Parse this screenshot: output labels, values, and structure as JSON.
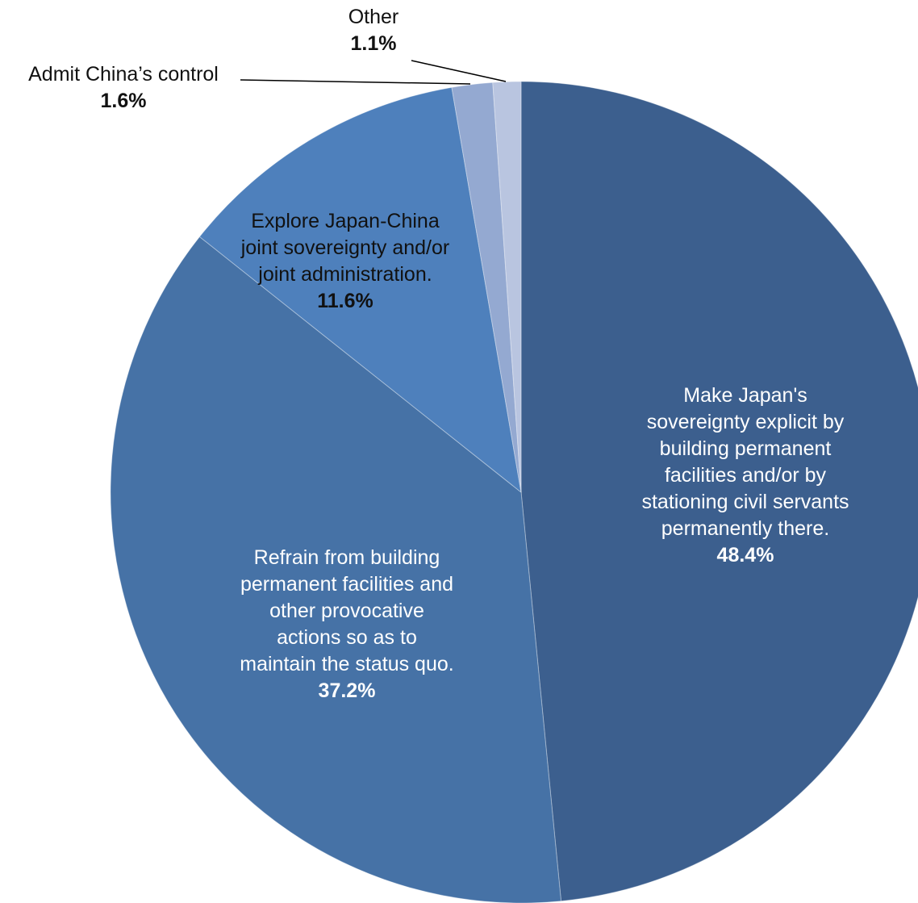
{
  "chart_data": {
    "type": "pie",
    "title": "",
    "slices": [
      {
        "label_lines": [
          "Make Japan's",
          "sovereignty explicit by",
          "building permanent",
          "facilities and/or by",
          "stationing civil servants",
          "permanently there."
        ],
        "value": 48.4,
        "value_label": "48.4%",
        "color": "#3c5f8e",
        "text_color": "#ffffff"
      },
      {
        "label_lines": [
          "Refrain from building",
          "permanent facilities and",
          "other provocative",
          "actions so as to",
          "maintain the status quo."
        ],
        "value": 37.2,
        "value_label": "37.2%",
        "color": "#4672a6",
        "text_color": "#ffffff"
      },
      {
        "label_lines": [
          "Explore Japan-China",
          "joint sovereignty and/or",
          "joint administration."
        ],
        "value": 11.6,
        "value_label": "11.6%",
        "color": "#4e80bc",
        "text_color": "#111111"
      },
      {
        "label_lines": [
          "Admit China’s control"
        ],
        "value": 1.6,
        "value_label": "1.6%",
        "color": "#94a9d1",
        "text_color": "#111111"
      },
      {
        "label_lines": [
          "Other"
        ],
        "value": 1.1,
        "value_label": "1.1%",
        "color": "#b9c5e0",
        "text_color": "#111111"
      }
    ]
  }
}
